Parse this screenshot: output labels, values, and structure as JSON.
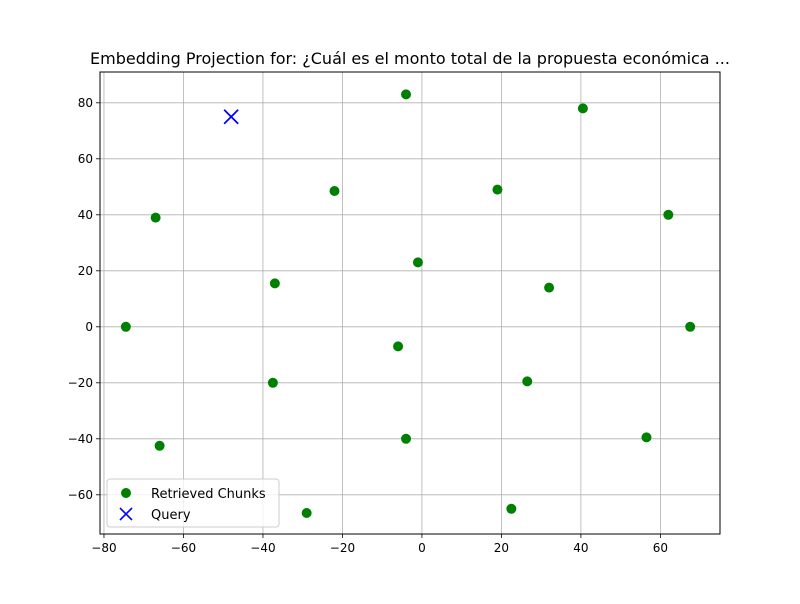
{
  "chart_data": {
    "type": "scatter",
    "title": "Embedding Projection for: ¿Cuál es el monto total de la propuesta económica ...",
    "xlabel": "",
    "ylabel": "",
    "xlim": [
      -81,
      75
    ],
    "ylim": [
      -74,
      91
    ],
    "xticks": [
      -80,
      -60,
      -40,
      -20,
      0,
      20,
      40,
      60
    ],
    "yticks": [
      -60,
      -40,
      -20,
      0,
      20,
      40,
      60,
      80
    ],
    "grid": true,
    "legend": {
      "placement": "lower-left"
    },
    "series": [
      {
        "name": "Retrieved Chunks",
        "marker": "circle",
        "color": "#008000",
        "points": [
          {
            "x": -4,
            "y": 83
          },
          {
            "x": 40.5,
            "y": 78
          },
          {
            "x": -22,
            "y": 48.5
          },
          {
            "x": 19,
            "y": 49
          },
          {
            "x": -67,
            "y": 39
          },
          {
            "x": 62,
            "y": 40
          },
          {
            "x": -1,
            "y": 23
          },
          {
            "x": -37,
            "y": 15.5
          },
          {
            "x": 32,
            "y": 14
          },
          {
            "x": -74.5,
            "y": 0
          },
          {
            "x": 67.5,
            "y": 0
          },
          {
            "x": -6,
            "y": -7
          },
          {
            "x": -37.5,
            "y": -20
          },
          {
            "x": 26.5,
            "y": -19.5
          },
          {
            "x": -4,
            "y": -40
          },
          {
            "x": 56.5,
            "y": -39.5
          },
          {
            "x": -66,
            "y": -42.5
          },
          {
            "x": -29,
            "y": -66.5
          },
          {
            "x": 22.5,
            "y": -65
          }
        ]
      },
      {
        "name": "Query",
        "marker": "x",
        "color": "#0000ff",
        "points": [
          {
            "x": -48,
            "y": 75
          }
        ]
      }
    ]
  }
}
